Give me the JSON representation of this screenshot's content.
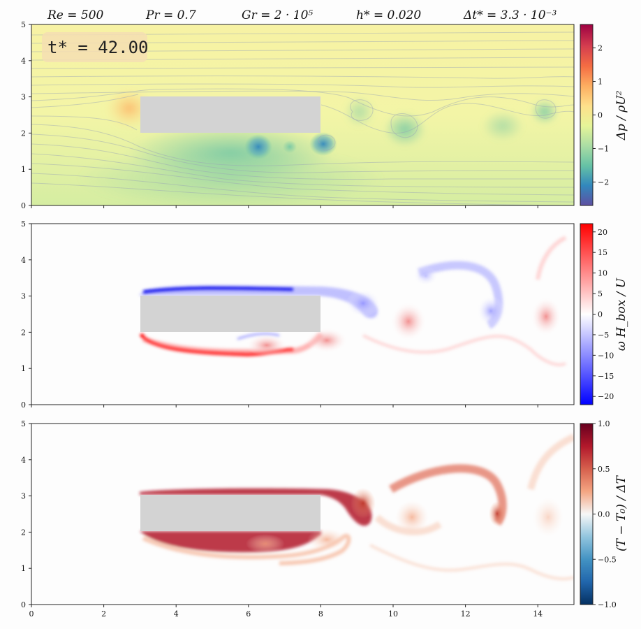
{
  "header": {
    "params": [
      "Re = 500",
      "Pr = 0.7",
      "Gr = 2 · 10⁵",
      "h* = 0.020",
      "Δt* = 3.3 · 10⁻³"
    ]
  },
  "time_label": "t* = 42.00",
  "axes": {
    "x_ticks": [
      "0",
      "2",
      "4",
      "6",
      "8",
      "10",
      "12",
      "14"
    ],
    "y_ticks": [
      "0",
      "1",
      "2",
      "3",
      "4",
      "5"
    ],
    "xlim": [
      0,
      15
    ],
    "ylim": [
      0,
      5
    ]
  },
  "obstacle": {
    "x": [
      3,
      8
    ],
    "y": [
      2,
      3
    ],
    "color": "#d3d3d3"
  },
  "panels": [
    {
      "name": "pressure",
      "colorbar_label": "Δp / ρU²",
      "colorbar_ticks": [
        "2",
        "1",
        "0",
        "−1",
        "−2"
      ],
      "colorbar_values": [
        2,
        1,
        0,
        -1,
        -2
      ],
      "colorbar_range": [
        -2.7,
        2.7
      ],
      "colormap": [
        "#5e4fa2",
        "#3288bd",
        "#66c2a5",
        "#abdda4",
        "#e6f598",
        "#fee08b",
        "#fdae61",
        "#f46d43",
        "#d53e4f",
        "#9e0142"
      ]
    },
    {
      "name": "vorticity",
      "colorbar_label": "ω H_box / U",
      "colorbar_ticks": [
        "20",
        "15",
        "10",
        "5",
        "0",
        "−5",
        "−10",
        "−15",
        "−20"
      ],
      "colorbar_values": [
        20,
        15,
        10,
        5,
        0,
        -5,
        -10,
        -15,
        -20
      ],
      "colorbar_range": [
        -22,
        22
      ],
      "colormap": [
        "#0000ff",
        "#ffffff",
        "#ff0000"
      ]
    },
    {
      "name": "temperature",
      "colorbar_label": "(T − T₀) / ΔT",
      "colorbar_ticks": [
        "1.0",
        "0.5",
        "0.0",
        "−0.5",
        "−1.0"
      ],
      "colorbar_values": [
        1.0,
        0.5,
        0.0,
        -0.5,
        -1.0
      ],
      "colorbar_range": [
        -1,
        1
      ],
      "colormap": [
        "#053061",
        "#2166ac",
        "#4393c3",
        "#92c5de",
        "#f7f7f7",
        "#f4a582",
        "#d6604d",
        "#b2182b",
        "#67001f"
      ]
    }
  ]
}
